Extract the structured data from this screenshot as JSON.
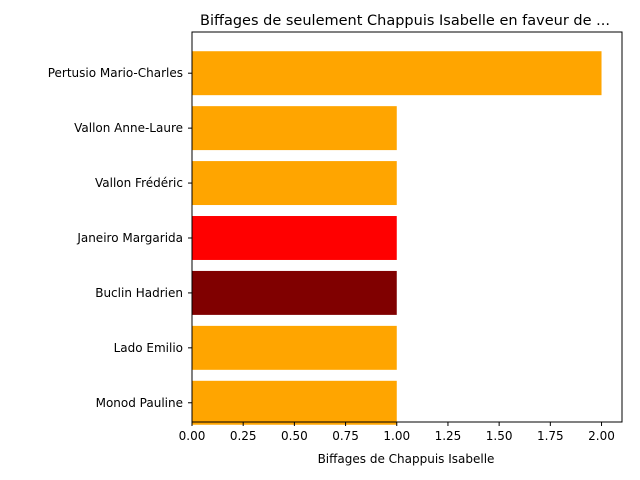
{
  "chart_data": {
    "type": "bar",
    "orientation": "horizontal",
    "title": "Biffages de seulement Chappuis Isabelle en faveur de ...",
    "xlabel": "Biffages de Chappuis Isabelle",
    "ylabel": "",
    "xlim": [
      0,
      2.1
    ],
    "xticks": [
      "0.00",
      "0.25",
      "0.50",
      "0.75",
      "1.00",
      "1.25",
      "1.50",
      "1.75",
      "2.00"
    ],
    "grid": false,
    "categories": [
      "Pertusio Mario-Charles",
      "Vallon Anne-Laure",
      "Vallon Frédéric",
      "Janeiro Margarida",
      "Buclin Hadrien",
      "Lado Emilio",
      "Monod Pauline"
    ],
    "values": [
      2,
      1,
      1,
      1,
      1,
      1,
      1
    ],
    "colors": [
      "#ffa500",
      "#ffa500",
      "#ffa500",
      "#ff0000",
      "#800000",
      "#ffa500",
      "#ffa500"
    ]
  }
}
